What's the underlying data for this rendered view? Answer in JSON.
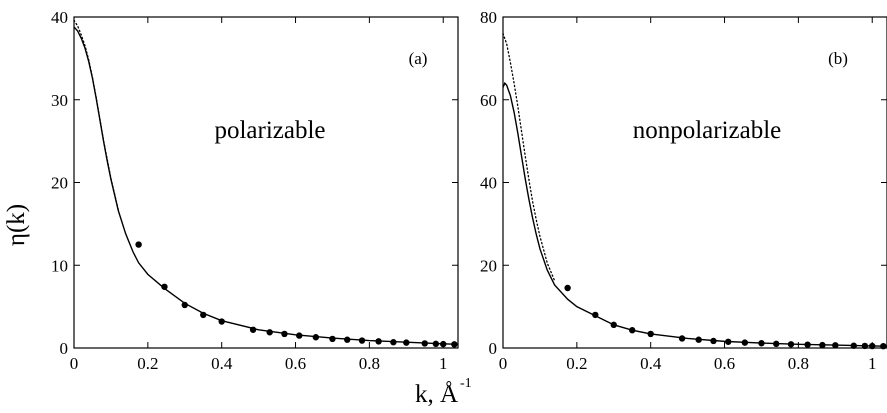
{
  "chart_data": [
    {
      "type": "line",
      "panel_tag": "(a)",
      "inset_label": "polarizable",
      "ylabel": "η(k)",
      "xlabel": "k, Å",
      "xlabel_superscript": "-1",
      "xlim": [
        0,
        1.04
      ],
      "ylim": [
        0,
        40
      ],
      "xticks": [
        0,
        0.2,
        0.4,
        0.6,
        0.8,
        1
      ],
      "yticks": [
        0,
        10,
        20,
        30,
        40
      ],
      "grid": false,
      "series": [
        {
          "style": "solid",
          "x": [
            0,
            0.01,
            0.02,
            0.03,
            0.04,
            0.05,
            0.06,
            0.07,
            0.08,
            0.09,
            0.1,
            0.12,
            0.14,
            0.16,
            0.175,
            0.2,
            0.245,
            0.3,
            0.35,
            0.4,
            0.5,
            0.6,
            0.7,
            0.8,
            0.9,
            1.0,
            1.04
          ],
          "y": [
            38.8,
            38.3,
            37.4,
            36.2,
            34.6,
            32.6,
            30.2,
            27.6,
            25.0,
            22.6,
            20.4,
            16.6,
            13.8,
            11.6,
            10.3,
            8.9,
            7.2,
            5.4,
            4.2,
            3.3,
            2.2,
            1.6,
            1.2,
            0.9,
            0.7,
            0.5,
            0.45
          ]
        },
        {
          "style": "dotted",
          "x": [
            0,
            0.01,
            0.02,
            0.03,
            0.04,
            0.05,
            0.06,
            0.07,
            0.08,
            0.1,
            0.12
          ],
          "y": [
            39.6,
            38.9,
            37.8,
            36.5,
            34.8,
            32.7,
            30.3,
            27.7,
            25.1,
            20.5,
            16.7
          ]
        },
        {
          "style": "markers",
          "x": [
            0.175,
            0.245,
            0.3,
            0.35,
            0.4,
            0.485,
            0.53,
            0.57,
            0.61,
            0.655,
            0.7,
            0.74,
            0.78,
            0.825,
            0.865,
            0.9,
            0.95,
            0.98,
            1.0,
            1.03
          ],
          "y": [
            12.5,
            7.4,
            5.2,
            4.0,
            3.2,
            2.2,
            1.9,
            1.7,
            1.5,
            1.3,
            1.1,
            1.0,
            0.9,
            0.8,
            0.7,
            0.65,
            0.55,
            0.5,
            0.47,
            0.44
          ]
        }
      ]
    },
    {
      "type": "line",
      "panel_tag": "(b)",
      "inset_label": "nonpolarizable",
      "xlim": [
        0,
        1.04
      ],
      "ylim": [
        0,
        80
      ],
      "xticks": [
        0,
        0.2,
        0.4,
        0.6,
        0.8,
        1
      ],
      "yticks": [
        0,
        20,
        40,
        60,
        80
      ],
      "grid": false,
      "series": [
        {
          "style": "solid",
          "x": [
            0,
            0.005,
            0.01,
            0.02,
            0.03,
            0.04,
            0.05,
            0.06,
            0.07,
            0.08,
            0.09,
            0.1,
            0.12,
            0.14,
            0.175,
            0.2,
            0.25,
            0.3,
            0.35,
            0.4,
            0.5,
            0.6,
            0.7,
            0.8,
            0.9,
            1.0,
            1.04
          ],
          "y": [
            63.0,
            64.0,
            63.5,
            61.0,
            57.0,
            52.0,
            46.5,
            41.0,
            36.0,
            31.5,
            27.5,
            24.0,
            18.8,
            15.2,
            11.8,
            10.0,
            7.8,
            5.6,
            4.3,
            3.4,
            2.3,
            1.6,
            1.2,
            0.9,
            0.7,
            0.5,
            0.45
          ]
        },
        {
          "style": "dotted",
          "x": [
            0,
            0.01,
            0.02,
            0.03,
            0.04,
            0.05,
            0.06,
            0.07,
            0.08,
            0.09,
            0.1,
            0.12,
            0.14
          ],
          "y": [
            76.0,
            73.5,
            69.0,
            64.0,
            58.5,
            52.5,
            46.5,
            40.8,
            35.5,
            31.0,
            27.0,
            20.5,
            16.2
          ]
        },
        {
          "style": "markers",
          "x": [
            0.175,
            0.25,
            0.3,
            0.35,
            0.4,
            0.485,
            0.53,
            0.57,
            0.61,
            0.655,
            0.7,
            0.74,
            0.78,
            0.825,
            0.865,
            0.9,
            0.95,
            0.98,
            1.0,
            1.03
          ],
          "y": [
            14.5,
            8.0,
            5.6,
            4.3,
            3.4,
            2.3,
            2.0,
            1.7,
            1.5,
            1.3,
            1.15,
            1.0,
            0.9,
            0.8,
            0.7,
            0.65,
            0.55,
            0.5,
            0.47,
            0.44
          ]
        }
      ]
    }
  ]
}
